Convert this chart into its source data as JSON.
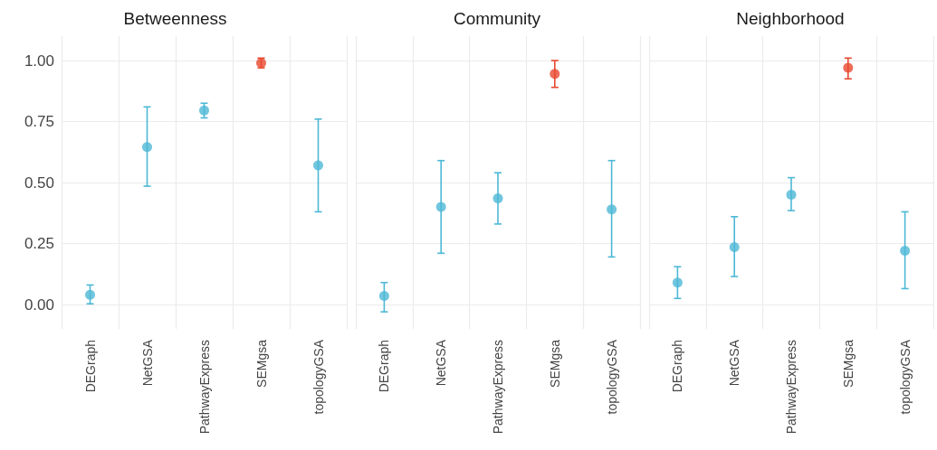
{
  "chart_data": [
    {
      "type": "scatter",
      "title": "Betweenness",
      "categories": [
        "DEGraph",
        "NetGSA",
        "PathwayExpress",
        "SEMgsa",
        "topologyGSA"
      ],
      "values": [
        0.04,
        0.645,
        0.795,
        0.99,
        0.57
      ],
      "errors": [
        [
          0.003,
          0.08
        ],
        [
          0.485,
          0.81
        ],
        [
          0.765,
          0.825
        ],
        [
          0.97,
          1.01
        ],
        [
          0.38,
          0.76
        ]
      ],
      "colors": [
        "#4db8d6",
        "#4db8d6",
        "#4db8d6",
        "#e8492f",
        "#4db8d6"
      ],
      "ylim": [
        -0.1,
        1.1
      ],
      "yticks": [
        {
          "value": 0,
          "label": "0.00"
        },
        {
          "value": 0.25,
          "label": "0.25"
        },
        {
          "value": 0.5,
          "label": "0.50"
        },
        {
          "value": 0.75,
          "label": "0.75"
        },
        {
          "value": 1,
          "label": "1.00"
        }
      ],
      "grid": true,
      "marker": "circle"
    },
    {
      "type": "scatter",
      "title": "Community",
      "categories": [
        "DEGraph",
        "NetGSA",
        "PathwayExpress",
        "SEMgsa",
        "topologyGSA"
      ],
      "values": [
        0.035,
        0.4,
        0.435,
        0.945,
        0.39
      ],
      "errors": [
        [
          -0.03,
          0.09
        ],
        [
          0.21,
          0.59
        ],
        [
          0.33,
          0.54
        ],
        [
          0.89,
          1.0
        ],
        [
          0.195,
          0.59
        ]
      ],
      "colors": [
        "#4db8d6",
        "#4db8d6",
        "#4db8d6",
        "#e8492f",
        "#4db8d6"
      ],
      "ylim": [
        -0.1,
        1.1
      ],
      "yticks": [
        {
          "value": 0,
          "label": null
        },
        {
          "value": 0.25,
          "label": null
        },
        {
          "value": 0.5,
          "label": null
        },
        {
          "value": 0.75,
          "label": null
        },
        {
          "value": 1,
          "label": null
        }
      ],
      "grid": true,
      "marker": "circle",
      "tick_labels": "x"
    },
    {
      "type": "scatter",
      "title": "Neighborhood",
      "categories": [
        "DEGraph",
        "NetGSA",
        "PathwayExpress",
        "SEMgsa",
        "topologyGSA"
      ],
      "values": [
        0.09,
        0.235,
        0.45,
        0.97,
        0.22
      ],
      "errors": [
        [
          0.025,
          0.155
        ],
        [
          0.115,
          0.36
        ],
        [
          0.385,
          0.52
        ],
        [
          0.925,
          1.01
        ],
        [
          0.065,
          0.38
        ]
      ],
      "colors": [
        "#4db8d6",
        "#4db8d6",
        "#4db8d6",
        "#e8492f",
        "#4db8d6"
      ],
      "ylim": [
        -0.1,
        1.1
      ],
      "yticks": [
        {
          "value": 0,
          "label": null
        },
        {
          "value": 0.25,
          "label": null
        },
        {
          "value": 0.5,
          "label": null
        },
        {
          "value": 0.75,
          "label": null
        },
        {
          "value": 1,
          "label": null
        }
      ],
      "grid": true,
      "marker": "circle",
      "tick_labels": "x"
    }
  ]
}
